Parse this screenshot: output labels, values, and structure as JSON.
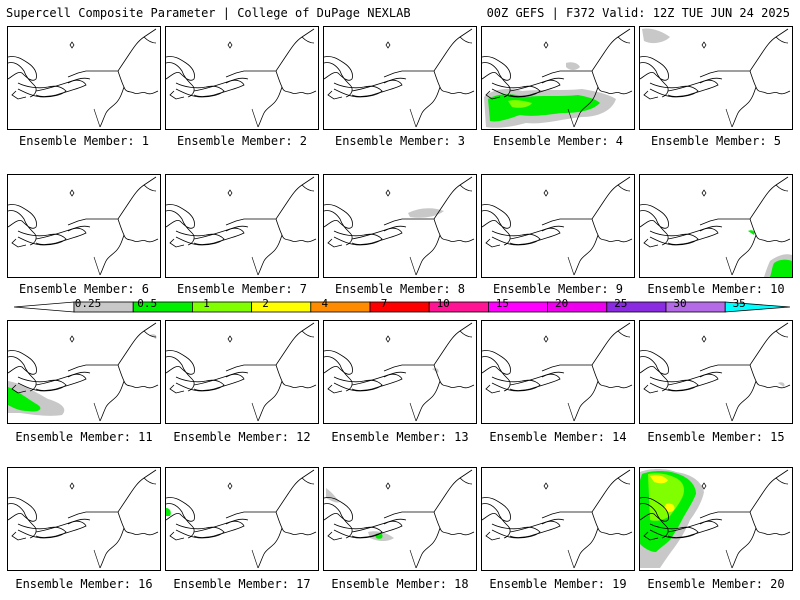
{
  "header": {
    "left": "Supercell Composite Parameter | College of DuPage NEXLAB",
    "right": "00Z GEFS | F372 Valid: 12Z TUE JUN 24 2025"
  },
  "colorbar": {
    "labels": [
      "0.25",
      "0.5",
      "1",
      "2",
      "4",
      "7",
      "10",
      "15",
      "20",
      "25",
      "30",
      "35"
    ],
    "colors": [
      "#c8c8c8",
      "#00ee00",
      "#7fff00",
      "#ffff00",
      "#ff8c00",
      "#ff0000",
      "#ff1493",
      "#ff00ff",
      "#ee00ee",
      "#8a2be2",
      "#b469e6",
      "#00ffff"
    ]
  },
  "members": [
    {
      "label": "Ensemble Member: 1"
    },
    {
      "label": "Ensemble Member: 2"
    },
    {
      "label": "Ensemble Member: 3"
    },
    {
      "label": "Ensemble Member: 4"
    },
    {
      "label": "Ensemble Member: 5"
    },
    {
      "label": "Ensemble Member: 6"
    },
    {
      "label": "Ensemble Member: 7"
    },
    {
      "label": "Ensemble Member: 8"
    },
    {
      "label": "Ensemble Member: 9"
    },
    {
      "label": "Ensemble Member: 10"
    },
    {
      "label": "Ensemble Member: 11"
    },
    {
      "label": "Ensemble Member: 12"
    },
    {
      "label": "Ensemble Member: 13"
    },
    {
      "label": "Ensemble Member: 14"
    },
    {
      "label": "Ensemble Member: 15"
    },
    {
      "label": "Ensemble Member: 16"
    },
    {
      "label": "Ensemble Member: 17"
    },
    {
      "label": "Ensemble Member: 18"
    },
    {
      "label": "Ensemble Member: 19"
    },
    {
      "label": "Ensemble Member: 20"
    }
  ]
}
